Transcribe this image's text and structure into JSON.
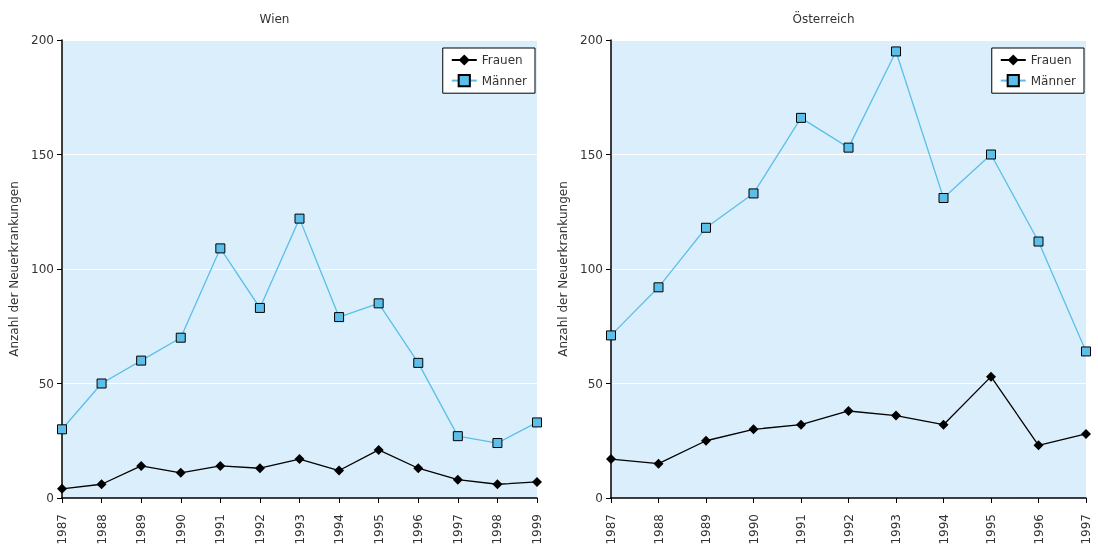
{
  "chart_data": [
    {
      "type": "line",
      "title": "Wien",
      "ylabel": "Anzahl der Neuerkrankungen",
      "categories": [
        "1987",
        "1988",
        "1989",
        "1990",
        "1991",
        "1992",
        "1993",
        "1994",
        "1995",
        "1996",
        "1997",
        "1998",
        "1999"
      ],
      "series": [
        {
          "name": "Frauen",
          "color": "#000000",
          "marker": "diamond",
          "values": [
            4,
            6,
            14,
            11,
            14,
            13,
            17,
            12,
            21,
            13,
            8,
            6,
            7
          ]
        },
        {
          "name": "Männer",
          "color": "#5bbfe9",
          "marker": "square",
          "values": [
            30,
            50,
            60,
            70,
            109,
            83,
            122,
            79,
            85,
            59,
            27,
            24,
            33
          ]
        }
      ],
      "ylim": [
        0,
        200
      ],
      "yticks": [
        0,
        50,
        100,
        150,
        200
      ],
      "grid": "y",
      "legend": "top right"
    },
    {
      "type": "line",
      "title": "Österreich",
      "ylabel": "Anzahl der Neuerkrankungen",
      "categories": [
        "1987",
        "1988",
        "1989",
        "1990",
        "1991",
        "1992",
        "1993",
        "1994",
        "1995",
        "1996",
        "1997"
      ],
      "series": [
        {
          "name": "Frauen",
          "color": "#000000",
          "marker": "diamond",
          "values": [
            17,
            15,
            25,
            30,
            32,
            38,
            36,
            32,
            53,
            23,
            28
          ]
        },
        {
          "name": "Männer",
          "color": "#5bbfe9",
          "marker": "square",
          "values": [
            71,
            92,
            118,
            133,
            166,
            153,
            195,
            131,
            150,
            112,
            64
          ]
        }
      ],
      "ylim": [
        0,
        200
      ],
      "yticks": [
        0,
        50,
        100,
        150,
        200
      ],
      "grid": "y",
      "legend": "top right"
    }
  ]
}
